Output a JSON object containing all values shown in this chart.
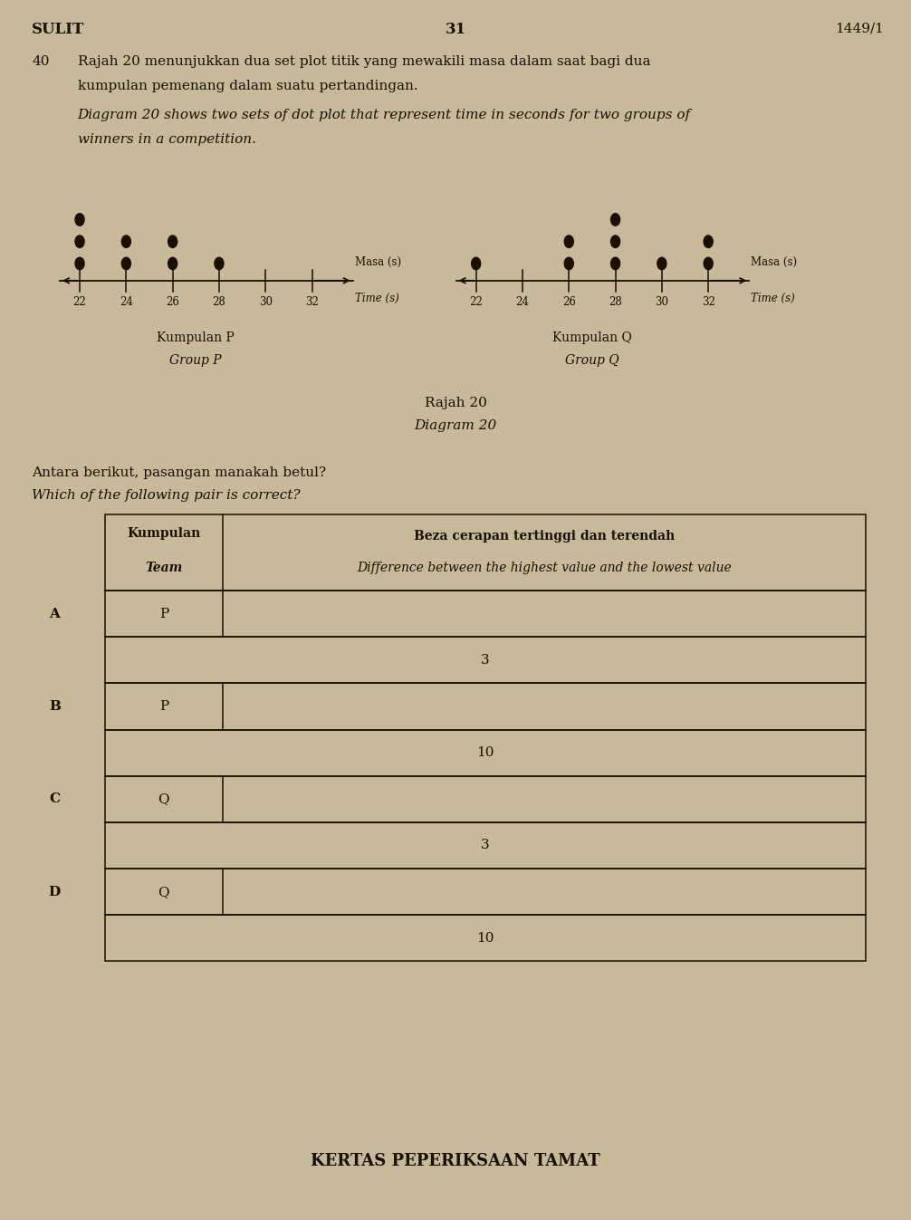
{
  "bg_color": "#c8b99a",
  "text_color": "#1a0f00",
  "header_left": "SULIT",
  "header_center": "31",
  "header_right": "1449/1",
  "q_number": "40",
  "q_text_malay_1": "Rajah 20 menunjukkan dua set plot titik yang mewakili masa dalam saat bagi dua",
  "q_text_malay_2": "kumpulan pemenang dalam suatu pertandingan.",
  "q_text_english_1": "Diagram 20 shows two sets of dot plot that represent time in seconds for two groups of",
  "q_text_english_2": "winners in a competition.",
  "group_p_dots": {
    "22": 3,
    "24": 2,
    "26": 2,
    "28": 1,
    "30": 0,
    "32": 0
  },
  "group_q_dots": {
    "22": 1,
    "24": 0,
    "26": 2,
    "28": 3,
    "30": 1,
    "32": 2
  },
  "axis_ticks": [
    22,
    24,
    26,
    28,
    30,
    32
  ],
  "masa_label": "Masa (s)",
  "time_label": "Time (s)",
  "group_p_label_malay": "Kumpulan P",
  "group_p_label_english": "Group P",
  "group_q_label_malay": "Kumpulan Q",
  "group_q_label_english": "Group Q",
  "diagram_label_malay": "Rajah 20",
  "diagram_label_english": "Diagram 20",
  "question2_malay": "Antara berikut, pasangan manakah betul?",
  "question2_english": "Which of the following pair is correct?",
  "table_header_col1_line1": "Kumpulan",
  "table_header_col1_line2": "Team",
  "table_header_col2_line1": "Beza cerapan tertinggi dan terendah",
  "table_header_col2_line2": "Difference between the highest value and the lowest value",
  "table_rows": [
    {
      "letter": "A",
      "team": "P",
      "value": "3"
    },
    {
      "letter": "B",
      "team": "P",
      "value": "10"
    },
    {
      "letter": "C",
      "team": "Q",
      "value": "3"
    },
    {
      "letter": "D",
      "team": "Q",
      "value": "10"
    }
  ],
  "footer": "KERTAS PEPERIKSAAN TAMAT"
}
